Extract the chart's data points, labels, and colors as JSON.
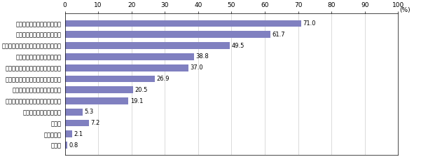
{
  "categories": [
    "無回答",
    "わからない",
    "その他",
    "現状のままで適用できる",
    "仕事の納期にゆとりを持たせること",
    "仕事全体の量を少なくすること",
    "ルーティンワークなどを減らすこと",
    "管理職の部下管理の考え方を変える",
    "仕事に関わる権限を委㖱する",
    "仕事の成果で評価するようにすること",
    "仕事の目標を明確にすること",
    "仕事の範囲を明確にすること"
  ],
  "values": [
    0.8,
    2.1,
    7.2,
    5.3,
    19.1,
    20.5,
    26.9,
    37.0,
    38.8,
    49.5,
    61.7,
    71.0
  ],
  "bar_color": "#8080c0",
  "xlim": [
    0,
    100
  ],
  "xticks": [
    0,
    10,
    20,
    30,
    40,
    50,
    60,
    70,
    80,
    90,
    100
  ],
  "xlabel_unit": "(%)",
  "value_labels": [
    "0.8",
    "2.1",
    "7.2",
    "5.3",
    "19.1",
    "20.5",
    "26.9",
    "37.0",
    "38.8",
    "49.5",
    "61.7",
    "71.0"
  ],
  "figsize": [
    6.01,
    2.24
  ],
  "dpi": 100,
  "bar_height": 0.62,
  "fontsize_labels": 6.0,
  "fontsize_values": 6.0,
  "fontsize_xticks": 6.5,
  "fontsize_unit": 6.5
}
